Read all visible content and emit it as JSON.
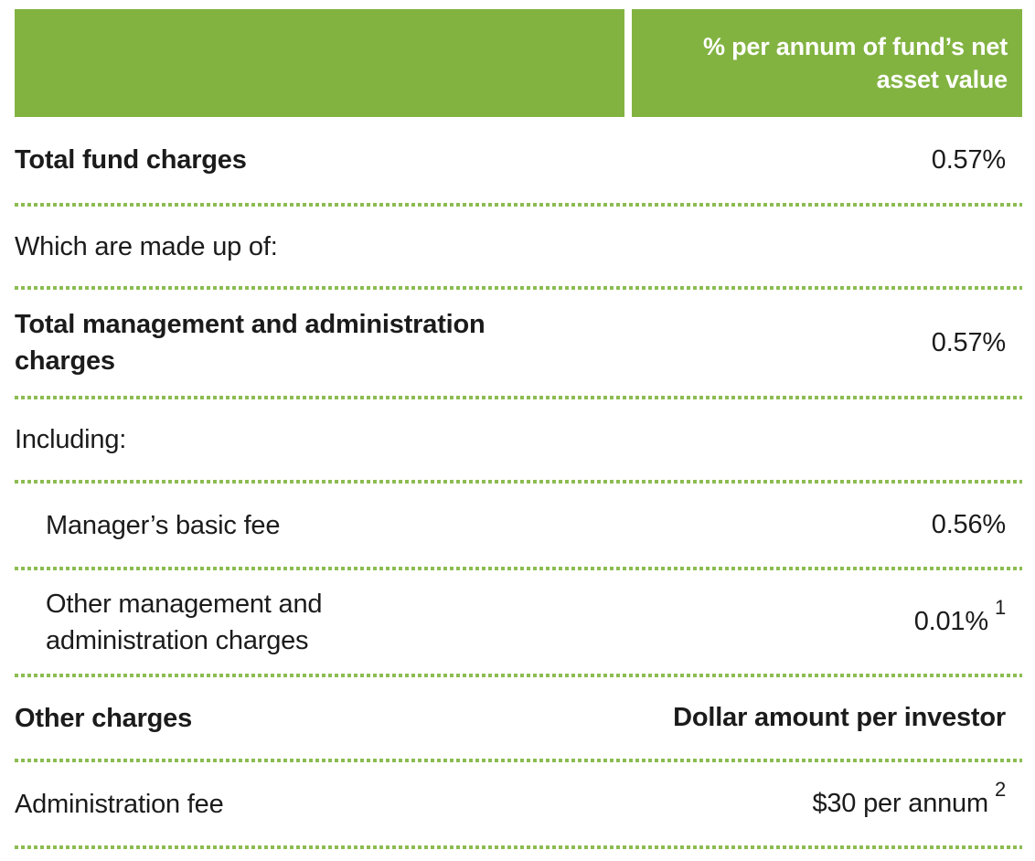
{
  "table": {
    "header": {
      "label_column": "",
      "value_column": "% per annum of fund’s net\nasset value"
    },
    "rows": [
      {
        "label": "Total fund charges",
        "value": "0.57%"
      },
      {
        "label": "Which are made up of:",
        "value": ""
      },
      {
        "label": "Total management and administration\ncharges",
        "value": "0.57%"
      },
      {
        "label": "Including:",
        "value": ""
      },
      {
        "label": "Manager’s basic fee",
        "value": "0.56%"
      },
      {
        "label": "Other management and\nadministration charges",
        "value": "0.01%",
        "superscript": "1"
      },
      {
        "label": "Other charges",
        "value": "Dollar amount per investor"
      },
      {
        "label": "Administration fee",
        "value": "$30 per annum",
        "superscript": "2"
      }
    ],
    "colors": {
      "header_green": "#82b341",
      "dotted_line_green": "#8cbc52",
      "text": "#1b1b1b",
      "header_text": "#ffffff"
    }
  }
}
